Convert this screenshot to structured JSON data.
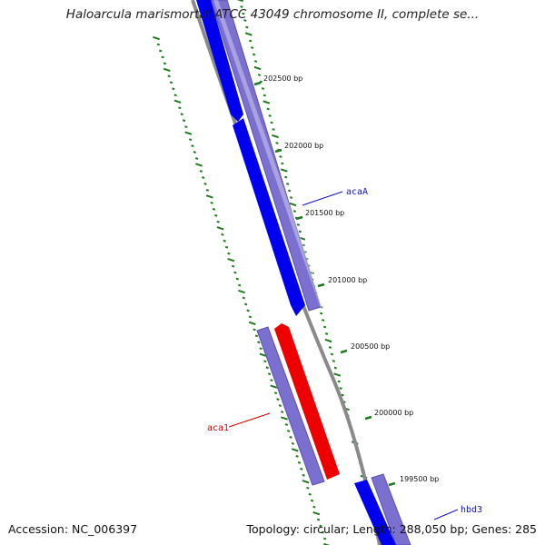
{
  "title": "Haloarcula marismortui ATCC 43049 chromosome II, complete se...",
  "footer": {
    "accession": "Accession: NC_006397",
    "summary": "Topology: circular; Length: 288,050 bp; Genes: 285"
  },
  "colors": {
    "backbone": "#8a8a8a",
    "tick": "#1f7a1f",
    "forward_gene": "#0000ee",
    "reverse_gene": "#ee0000",
    "cds_band": "#7b6fd0",
    "gene_label_forward": "#1010c8",
    "gene_label_reverse": "#d00000"
  },
  "ruler": {
    "tick_labels": [
      "202500 bp",
      "202000 bp",
      "201500 bp",
      "201000 bp",
      "200500 bp",
      "200000 bp",
      "199500 bp"
    ]
  },
  "genes": [
    {
      "label": "acaA",
      "strand": "forward"
    },
    {
      "label": "aca1",
      "strand": "reverse"
    },
    {
      "label": "hbd3",
      "strand": "forward"
    }
  ]
}
